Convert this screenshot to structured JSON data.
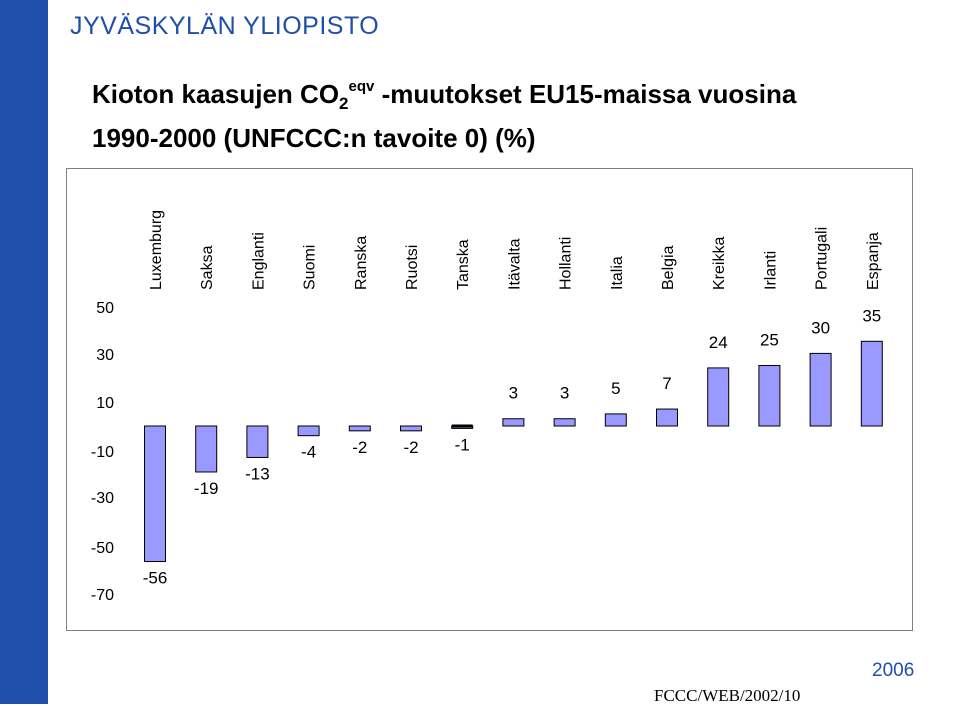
{
  "header": {
    "university": "JYVÄSKYLÄN YLIOPISTO",
    "title_main": "Kioton kaasujen CO",
    "title_sub": "2",
    "title_sup": "eqv",
    "title_rest": " -muutokset EU15-maissa vuosina",
    "title_line2": "1990-2000 (UNFCCC:n tavoite 0)  (%)"
  },
  "footer": {
    "year": "2006",
    "source": "FCCC/WEB/2002/10"
  },
  "colors": {
    "brand": "#1f4fa8",
    "bar_fill": "#9999ff",
    "bar_stroke": "#000000"
  },
  "chart_data": {
    "type": "bar",
    "categories": [
      "Luxemburg",
      "Saksa",
      "Englanti",
      "Suomi",
      "Ranska",
      "Ruotsi",
      "Tanska",
      "Itävalta",
      "Hollanti",
      "Italia",
      "Belgia",
      "Kreikka",
      "Irlanti",
      "Portugali",
      "Espanja"
    ],
    "values": [
      -56,
      -19,
      -13,
      -4,
      -2,
      -2,
      -1,
      3,
      3,
      5,
      7,
      24,
      25,
      30,
      35
    ],
    "value_labels": [
      "-56",
      "-19",
      "-13",
      "-4",
      "-2",
      "-2",
      "-1",
      "3",
      "3",
      "5",
      "7",
      "24",
      "25",
      "30",
      "35"
    ],
    "y_ticks": [
      50,
      30,
      10,
      -10,
      -30,
      -50,
      -70
    ],
    "y_tick_labels": [
      "50",
      "30",
      "10",
      "-10",
      "-30",
      "-50",
      "-70"
    ],
    "ylim": [
      -70,
      50
    ],
    "title": "",
    "xlabel": "",
    "ylabel": "",
    "grid": false,
    "legend": "none"
  }
}
